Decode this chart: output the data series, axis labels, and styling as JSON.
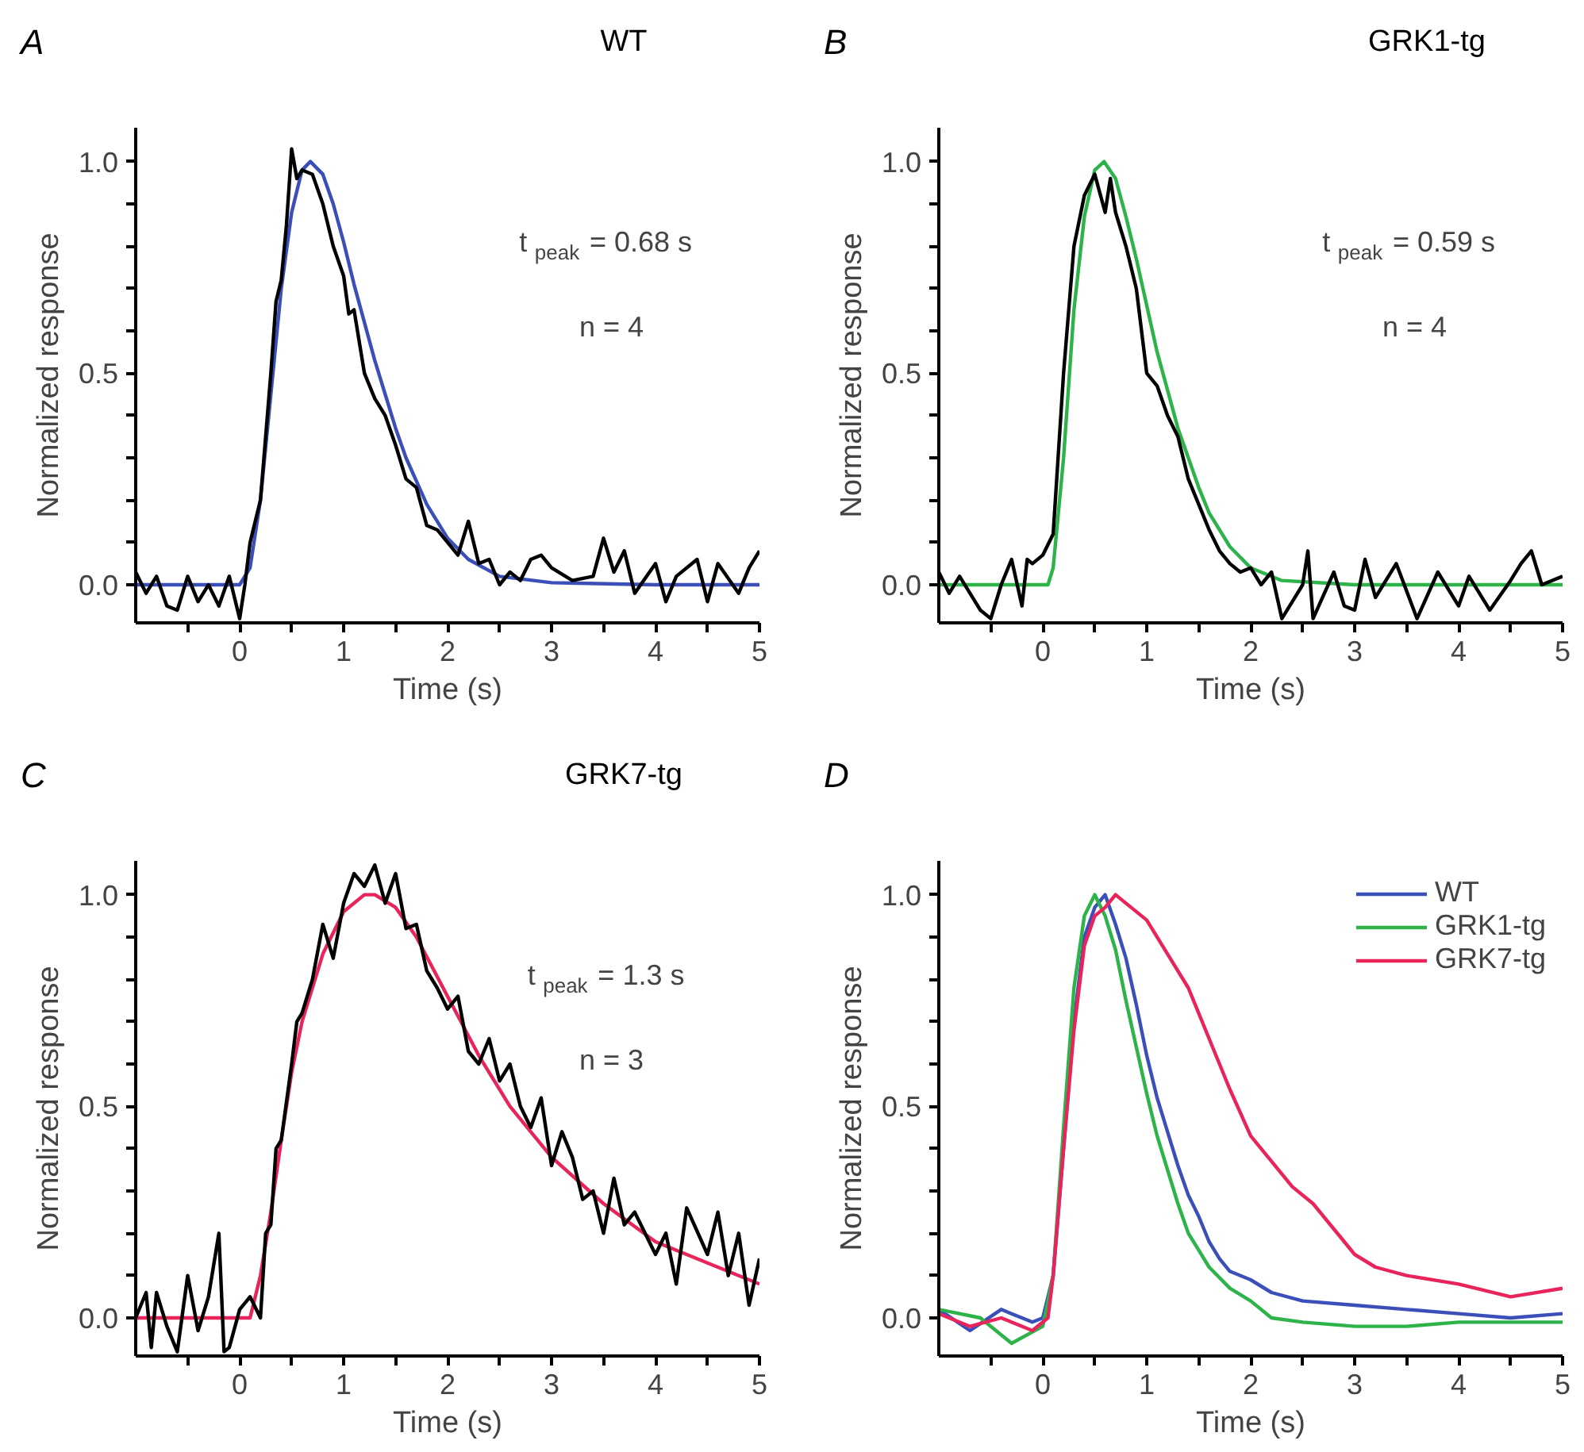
{
  "chart_data": [
    {
      "type": "line",
      "title": "WT",
      "xlabel": "Time (s)",
      "ylabel": "Normalized response",
      "annotations": [
        "A",
        "t$_{peak}$ = 0.68 s",
        "n = 4"
      ],
      "xlim": [
        -1,
        5
      ],
      "ylim": [
        -0.09,
        1.08
      ],
      "xticks": [
        {
          "value": -0.5,
          "label": null
        },
        0,
        {
          "value": 0.5,
          "label": null
        },
        1,
        {
          "value": 1.5,
          "label": null
        },
        2,
        {
          "value": 2.5,
          "label": null
        },
        3,
        {
          "value": 3.5,
          "label": null
        },
        4,
        {
          "value": 4.5,
          "label": null
        },
        5
      ],
      "yticks": [
        {
          "value": 0,
          "label": "0.0"
        },
        {
          "value": 0.1,
          "label": null
        },
        {
          "value": 0.2,
          "label": null
        },
        {
          "value": 0.3,
          "label": null
        },
        {
          "value": 0.4,
          "label": null
        },
        {
          "value": 0.5,
          "label": "0.5"
        },
        {
          "value": 0.6,
          "label": null
        },
        {
          "value": 0.7,
          "label": null
        },
        {
          "value": 0.8,
          "label": null
        },
        {
          "value": 0.9,
          "label": null
        },
        {
          "value": 1,
          "label": "1.0"
        }
      ],
      "series": [
        {
          "color": "#3b4fb8",
          "x": [
            -1,
            0,
            0.1,
            0.2,
            0.3,
            0.4,
            0.5,
            0.6,
            0.68,
            0.8,
            0.9,
            1.0,
            1.1,
            1.2,
            1.3,
            1.4,
            1.5,
            1.6,
            1.8,
            2.0,
            2.2,
            2.5,
            3,
            4,
            5
          ],
          "values": [
            0,
            0,
            0.04,
            0.2,
            0.45,
            0.7,
            0.88,
            0.98,
            1.0,
            0.97,
            0.9,
            0.81,
            0.71,
            0.62,
            0.53,
            0.45,
            0.37,
            0.3,
            0.19,
            0.11,
            0.06,
            0.02,
            0.005,
            0,
            0
          ]
        },
        {
          "color": "#000000",
          "x": [
            -1,
            -0.9,
            -0.8,
            -0.7,
            -0.6,
            -0.5,
            -0.4,
            -0.3,
            -0.2,
            -0.1,
            0,
            0.05,
            0.1,
            0.2,
            0.3,
            0.35,
            0.4,
            0.45,
            0.5,
            0.55,
            0.6,
            0.7,
            0.8,
            0.9,
            1.0,
            1.05,
            1.1,
            1.2,
            1.3,
            1.4,
            1.5,
            1.6,
            1.7,
            1.8,
            1.9,
            2.0,
            2.1,
            2.2,
            2.3,
            2.4,
            2.5,
            2.6,
            2.7,
            2.8,
            2.9,
            3.0,
            3.2,
            3.4,
            3.5,
            3.6,
            3.7,
            3.8,
            4.0,
            4.1,
            4.2,
            4.4,
            4.5,
            4.6,
            4.8,
            4.9,
            5.0
          ],
          "values": [
            0.03,
            -0.02,
            0.02,
            -0.05,
            -0.06,
            0.02,
            -0.04,
            0.0,
            -0.05,
            0.02,
            -0.08,
            0.0,
            0.1,
            0.2,
            0.5,
            0.67,
            0.72,
            0.85,
            1.03,
            0.96,
            0.98,
            0.97,
            0.9,
            0.8,
            0.73,
            0.64,
            0.65,
            0.5,
            0.44,
            0.4,
            0.33,
            0.25,
            0.23,
            0.14,
            0.13,
            0.1,
            0.07,
            0.15,
            0.05,
            0.06,
            0.0,
            0.03,
            0.01,
            0.06,
            0.07,
            0.04,
            0.01,
            0.02,
            0.11,
            0.03,
            0.08,
            -0.02,
            0.05,
            -0.04,
            0.02,
            0.06,
            -0.04,
            0.05,
            -0.02,
            0.04,
            0.08
          ]
        }
      ]
    },
    {
      "type": "line",
      "title": "GRK1-tg",
      "xlabel": "Time (s)",
      "ylabel": "Normalized response",
      "annotations": [
        "B",
        "t$_{peak}$ = 0.59 s",
        "n = 4"
      ],
      "xlim": [
        -1,
        5
      ],
      "ylim": [
        -0.09,
        1.08
      ],
      "xticks": [
        {
          "value": -0.5,
          "label": null
        },
        0,
        {
          "value": 0.5,
          "label": null
        },
        1,
        {
          "value": 1.5,
          "label": null
        },
        2,
        {
          "value": 2.5,
          "label": null
        },
        3,
        {
          "value": 3.5,
          "label": null
        },
        4,
        {
          "value": 4.5,
          "label": null
        },
        5
      ],
      "yticks": [
        {
          "value": 0,
          "label": "0.0"
        },
        {
          "value": 0.1,
          "label": null
        },
        {
          "value": 0.2,
          "label": null
        },
        {
          "value": 0.3,
          "label": null
        },
        {
          "value": 0.4,
          "label": null
        },
        {
          "value": 0.5,
          "label": "0.5"
        },
        {
          "value": 0.6,
          "label": null
        },
        {
          "value": 0.7,
          "label": null
        },
        {
          "value": 0.8,
          "label": null
        },
        {
          "value": 0.9,
          "label": null
        },
        {
          "value": 1,
          "label": "1.0"
        }
      ],
      "series": [
        {
          "color": "#2db34a",
          "x": [
            -1,
            0.05,
            0.1,
            0.2,
            0.3,
            0.4,
            0.5,
            0.59,
            0.7,
            0.8,
            0.9,
            1.0,
            1.1,
            1.2,
            1.3,
            1.4,
            1.5,
            1.6,
            1.8,
            2.0,
            2.3,
            3,
            5
          ],
          "values": [
            0,
            0,
            0.04,
            0.3,
            0.65,
            0.87,
            0.98,
            1.0,
            0.96,
            0.87,
            0.77,
            0.66,
            0.55,
            0.46,
            0.37,
            0.3,
            0.23,
            0.17,
            0.09,
            0.04,
            0.01,
            0,
            0
          ]
        },
        {
          "color": "#000000",
          "x": [
            -1,
            -0.9,
            -0.8,
            -0.6,
            -0.5,
            -0.4,
            -0.3,
            -0.2,
            -0.15,
            -0.1,
            0,
            0.1,
            0.2,
            0.3,
            0.4,
            0.5,
            0.6,
            0.65,
            0.7,
            0.8,
            0.9,
            1.0,
            1.1,
            1.2,
            1.3,
            1.4,
            1.5,
            1.6,
            1.7,
            1.8,
            1.9,
            2.0,
            2.1,
            2.2,
            2.3,
            2.4,
            2.5,
            2.55,
            2.6,
            2.8,
            2.9,
            3.0,
            3.1,
            3.2,
            3.4,
            3.6,
            3.8,
            4.0,
            4.1,
            4.3,
            4.5,
            4.6,
            4.7,
            4.8,
            5.0
          ],
          "values": [
            0.03,
            -0.02,
            0.02,
            -0.06,
            -0.08,
            0.0,
            0.06,
            -0.05,
            0.06,
            0.05,
            0.07,
            0.12,
            0.5,
            0.8,
            0.92,
            0.97,
            0.88,
            0.96,
            0.88,
            0.8,
            0.7,
            0.5,
            0.47,
            0.4,
            0.35,
            0.25,
            0.19,
            0.13,
            0.08,
            0.05,
            0.03,
            0.04,
            0.0,
            0.03,
            -0.08,
            -0.04,
            0.0,
            0.08,
            -0.08,
            0.03,
            -0.05,
            -0.06,
            0.06,
            -0.03,
            0.05,
            -0.08,
            0.03,
            -0.05,
            0.02,
            -0.06,
            0.01,
            0.05,
            0.08,
            0.0,
            0.02
          ]
        }
      ]
    },
    {
      "type": "line",
      "title": "GRK7-tg",
      "xlabel": "Time (s)",
      "ylabel": "Normalized response",
      "annotations": [
        "C",
        "t$_{peak}$ = 1.3 s",
        "n = 3"
      ],
      "xlim": [
        -1,
        5
      ],
      "ylim": [
        -0.09,
        1.08
      ],
      "xticks": [
        {
          "value": -0.5,
          "label": null
        },
        0,
        {
          "value": 0.5,
          "label": null
        },
        1,
        {
          "value": 1.5,
          "label": null
        },
        2,
        {
          "value": 2.5,
          "label": null
        },
        3,
        {
          "value": 3.5,
          "label": null
        },
        4,
        {
          "value": 4.5,
          "label": null
        },
        5
      ],
      "yticks": [
        {
          "value": 0,
          "label": "0.0"
        },
        {
          "value": 0.1,
          "label": null
        },
        {
          "value": 0.2,
          "label": null
        },
        {
          "value": 0.3,
          "label": null
        },
        {
          "value": 0.4,
          "label": null
        },
        {
          "value": 0.5,
          "label": "0.5"
        },
        {
          "value": 0.6,
          "label": null
        },
        {
          "value": 0.7,
          "label": null
        },
        {
          "value": 0.8,
          "label": null
        },
        {
          "value": 0.9,
          "label": null
        },
        {
          "value": 1,
          "label": "1.0"
        }
      ],
      "series": [
        {
          "color": "#e8245a",
          "x": [
            -1,
            0.1,
            0.2,
            0.3,
            0.4,
            0.5,
            0.6,
            0.8,
            1.0,
            1.2,
            1.3,
            1.5,
            1.7,
            2.0,
            2.3,
            2.6,
            3.0,
            3.5,
            4.0,
            4.5,
            5.0
          ],
          "values": [
            0,
            0,
            0.1,
            0.25,
            0.42,
            0.58,
            0.7,
            0.86,
            0.96,
            1.0,
            1.0,
            0.97,
            0.9,
            0.76,
            0.62,
            0.5,
            0.38,
            0.27,
            0.18,
            0.13,
            0.08
          ]
        },
        {
          "color": "#000000",
          "x": [
            -1,
            -0.9,
            -0.85,
            -0.8,
            -0.7,
            -0.6,
            -0.5,
            -0.4,
            -0.3,
            -0.2,
            -0.15,
            -0.1,
            0.0,
            0.1,
            0.2,
            0.25,
            0.3,
            0.35,
            0.4,
            0.5,
            0.55,
            0.6,
            0.7,
            0.8,
            0.9,
            1.0,
            1.1,
            1.2,
            1.3,
            1.4,
            1.5,
            1.6,
            1.7,
            1.8,
            1.9,
            2.0,
            2.1,
            2.2,
            2.3,
            2.4,
            2.5,
            2.6,
            2.7,
            2.8,
            2.9,
            3.0,
            3.1,
            3.2,
            3.3,
            3.4,
            3.5,
            3.6,
            3.7,
            3.8,
            4.0,
            4.1,
            4.2,
            4.3,
            4.5,
            4.6,
            4.7,
            4.8,
            4.9,
            5.0
          ],
          "values": [
            0.0,
            0.06,
            -0.07,
            0.06,
            -0.02,
            -0.08,
            0.1,
            -0.03,
            0.05,
            0.2,
            -0.08,
            -0.07,
            0.02,
            0.05,
            0.0,
            0.2,
            0.22,
            0.4,
            0.42,
            0.6,
            0.7,
            0.72,
            0.8,
            0.93,
            0.85,
            0.98,
            1.05,
            1.02,
            1.07,
            0.98,
            1.05,
            0.92,
            0.93,
            0.82,
            0.78,
            0.73,
            0.76,
            0.63,
            0.6,
            0.66,
            0.56,
            0.6,
            0.5,
            0.45,
            0.52,
            0.36,
            0.44,
            0.38,
            0.28,
            0.3,
            0.2,
            0.33,
            0.22,
            0.25,
            0.15,
            0.2,
            0.08,
            0.26,
            0.15,
            0.25,
            0.1,
            0.2,
            0.03,
            0.14
          ]
        }
      ]
    },
    {
      "type": "line",
      "xlabel": "Time (s)",
      "ylabel": "Normalized response",
      "annotations": [
        "D"
      ],
      "legend": "top right",
      "xlim": [
        -1,
        5
      ],
      "ylim": [
        -0.09,
        1.08
      ],
      "xticks": [
        {
          "value": -0.5,
          "label": null
        },
        0,
        {
          "value": 0.5,
          "label": null
        },
        1,
        {
          "value": 1.5,
          "label": null
        },
        2,
        {
          "value": 2.5,
          "label": null
        },
        3,
        {
          "value": 3.5,
          "label": null
        },
        4,
        {
          "value": 4.5,
          "label": null
        },
        5
      ],
      "yticks": [
        {
          "value": 0,
          "label": "0.0"
        },
        {
          "value": 0.1,
          "label": null
        },
        {
          "value": 0.2,
          "label": null
        },
        {
          "value": 0.3,
          "label": null
        },
        {
          "value": 0.4,
          "label": null
        },
        {
          "value": 0.5,
          "label": "0.5"
        },
        {
          "value": 0.6,
          "label": null
        },
        {
          "value": 0.7,
          "label": null
        },
        {
          "value": 0.8,
          "label": null
        },
        {
          "value": 0.9,
          "label": null
        },
        {
          "value": 1,
          "label": "1.0"
        }
      ],
      "series": [
        {
          "name": "WT",
          "color": "#3b4fb8",
          "x": [
            -1,
            -0.7,
            -0.4,
            -0.1,
            0,
            0.1,
            0.2,
            0.3,
            0.4,
            0.5,
            0.6,
            0.7,
            0.8,
            0.9,
            1.0,
            1.1,
            1.2,
            1.3,
            1.4,
            1.5,
            1.6,
            1.7,
            1.8,
            2.0,
            2.2,
            2.5,
            3.0,
            3.5,
            4.0,
            4.5,
            5.0
          ],
          "values": [
            0.02,
            -0.03,
            0.02,
            -0.01,
            0.0,
            0.1,
            0.4,
            0.7,
            0.9,
            0.97,
            1.0,
            0.93,
            0.85,
            0.74,
            0.62,
            0.52,
            0.44,
            0.36,
            0.29,
            0.24,
            0.18,
            0.14,
            0.11,
            0.09,
            0.06,
            0.04,
            0.03,
            0.02,
            0.01,
            0.0,
            0.01
          ]
        },
        {
          "name": "GRK1-tg",
          "color": "#2db34a",
          "x": [
            -1,
            -0.6,
            -0.3,
            0,
            0.1,
            0.2,
            0.3,
            0.4,
            0.5,
            0.6,
            0.7,
            0.8,
            0.9,
            1.0,
            1.1,
            1.2,
            1.3,
            1.4,
            1.5,
            1.6,
            1.8,
            2.0,
            2.2,
            2.5,
            3.0,
            3.5,
            4.0,
            4.5,
            5.0
          ],
          "values": [
            0.02,
            0.0,
            -0.06,
            -0.02,
            0.1,
            0.45,
            0.78,
            0.95,
            1.0,
            0.95,
            0.87,
            0.75,
            0.64,
            0.53,
            0.43,
            0.35,
            0.27,
            0.2,
            0.16,
            0.12,
            0.07,
            0.04,
            0.0,
            -0.01,
            -0.02,
            -0.02,
            -0.01,
            -0.01,
            -0.01
          ]
        },
        {
          "name": "GRK7-tg",
          "color": "#e8245a",
          "x": [
            -1,
            -0.7,
            -0.4,
            -0.1,
            0.05,
            0.1,
            0.2,
            0.3,
            0.4,
            0.5,
            0.6,
            0.7,
            0.8,
            1.0,
            1.2,
            1.4,
            1.6,
            1.8,
            2.0,
            2.2,
            2.4,
            2.6,
            2.8,
            3.0,
            3.2,
            3.5,
            4.0,
            4.5,
            5.0
          ],
          "values": [
            0.01,
            -0.02,
            0.0,
            -0.03,
            0.0,
            0.1,
            0.4,
            0.68,
            0.88,
            0.95,
            0.97,
            1.0,
            0.98,
            0.94,
            0.86,
            0.78,
            0.66,
            0.54,
            0.43,
            0.37,
            0.31,
            0.27,
            0.21,
            0.15,
            0.12,
            0.1,
            0.08,
            0.05,
            0.07
          ]
        }
      ]
    }
  ]
}
